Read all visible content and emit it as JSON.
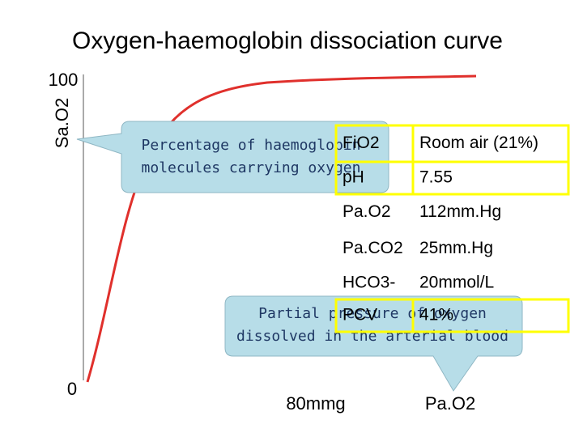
{
  "title": "Oxygen-haemoglobin dissociation curve",
  "axes": {
    "y_label": "Sa.O2",
    "y_top": "100",
    "y_bottom": "0",
    "x_mid": "80mmg",
    "x_label": "Pa.O2"
  },
  "callouts": [
    {
      "lines": [
        "Percentage of haemoglobin",
        "molecules carrying oxygen"
      ]
    },
    {
      "lines": [
        "Partial pressure of oxygen",
        "dissolved in the arterial blood"
      ]
    }
  ],
  "table": {
    "rows": [
      [
        "FiO2",
        "Room air (21%)"
      ],
      [
        "pH",
        "7.55"
      ],
      [
        "Pa.O2",
        "112mm.Hg"
      ],
      [
        "Pa.CO2",
        "25mm.Hg"
      ],
      [
        "HCO3-",
        "20mmol/L"
      ],
      [
        "PCV",
        "41%"
      ]
    ]
  }
}
